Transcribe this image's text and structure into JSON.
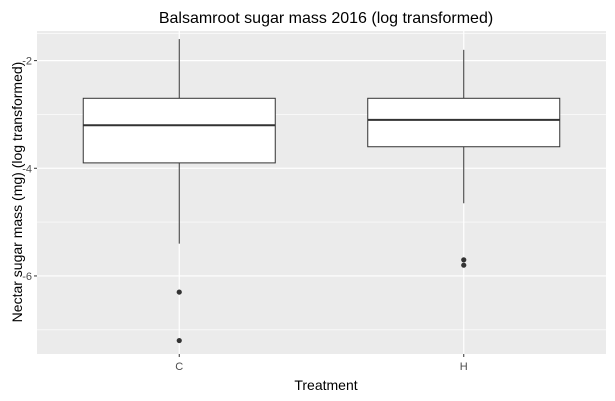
{
  "chart_data": {
    "type": "boxplot",
    "title": "Balsamroot sugar mass 2016 (log transformed)",
    "xlabel": "Treatment",
    "ylabel": "Nectar sugar mass (mg) (log transformed)",
    "categories": [
      "C",
      "H"
    ],
    "ylim": [
      -7.45,
      -1.45
    ],
    "yticks": [
      -2,
      -4,
      -6
    ],
    "grid": true,
    "boxes": [
      {
        "category": "C",
        "whisker_low": -5.4,
        "q1": -3.9,
        "median": -3.2,
        "q3": -2.7,
        "whisker_high": -1.6,
        "outliers": [
          -6.3,
          -7.2
        ]
      },
      {
        "category": "H",
        "whisker_low": -4.65,
        "q1": -3.6,
        "median": -3.1,
        "q3": -2.7,
        "whisker_high": -1.8,
        "outliers": [
          -5.7,
          -5.8
        ]
      }
    ],
    "colors": {
      "panel": "#ebebeb",
      "grid_major": "#ffffff",
      "box_fill": "#ffffff",
      "box_line": "#333333",
      "outlier": "#333333"
    }
  }
}
